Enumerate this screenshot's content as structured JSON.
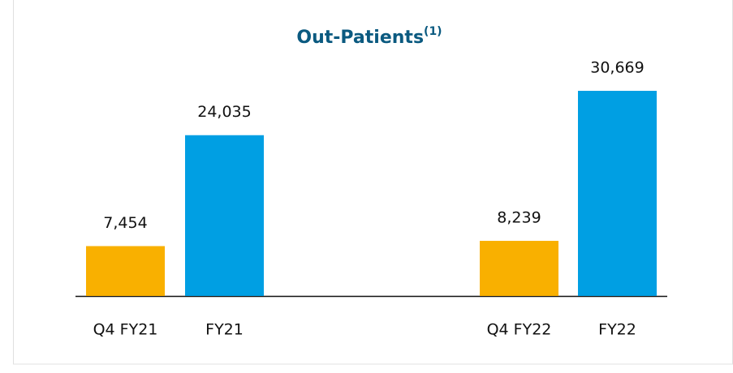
{
  "chart_data": {
    "type": "bar",
    "title": "Out-Patients",
    "title_note": "(1)",
    "categories": [
      "Q4 FY21",
      "FY21",
      "Q4 FY22",
      "FY22"
    ],
    "values": [
      7454,
      24035,
      8239,
      30669
    ],
    "value_labels": [
      "7,454",
      "24,035",
      "8,239",
      "30,669"
    ],
    "colors": [
      "#f9b000",
      "#009fe3",
      "#f9b000",
      "#009fe3"
    ]
  }
}
